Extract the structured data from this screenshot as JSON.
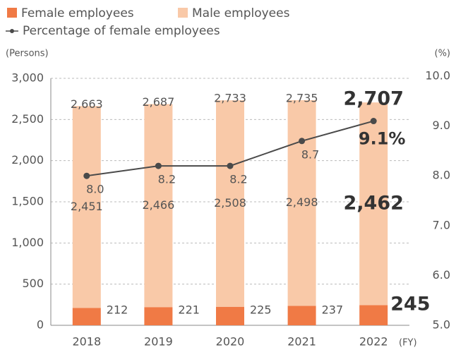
{
  "chart_data": {
    "type": "stacked_bar_line",
    "categories": [
      "2018",
      "2019",
      "2020",
      "2021",
      "2022"
    ],
    "x_unit": "(FY)",
    "y_label": "(Persons)",
    "y2_label": "(%)",
    "series": [
      {
        "name": "Female employees",
        "color": "#f07a45",
        "values": [
          212,
          221,
          225,
          237,
          245
        ]
      },
      {
        "name": "Male employees",
        "color": "#f9c9a8",
        "values": [
          2451,
          2466,
          2508,
          2498,
          2462
        ],
        "value_labels": [
          "2,451",
          "2,466",
          "2,508",
          "2,498",
          "2,462"
        ]
      },
      {
        "name": "Percentage of female employees",
        "color": "#4a4a4a",
        "axis": "y2",
        "values": [
          8.0,
          8.2,
          8.2,
          8.7,
          9.1
        ],
        "value_labels": [
          "8.0",
          "8.2",
          "8.2",
          "8.7",
          "9.1%"
        ]
      }
    ],
    "totals": [
      2663,
      2687,
      2733,
      2735,
      2707
    ],
    "total_labels": [
      "2,663",
      "2,687",
      "2,733",
      "2,735",
      "2,707"
    ],
    "ylim": [
      0,
      3000
    ],
    "yticks": [
      0,
      500,
      {
        "value": 1000,
        "label": "1,000"
      },
      {
        "value": 1500,
        "label": "1,500"
      },
      {
        "value": 2000,
        "label": "2,000"
      },
      {
        "value": 2500,
        "label": "2,500"
      },
      {
        "value": 3000,
        "label": "3,000"
      }
    ],
    "y2lim": [
      5,
      10
    ],
    "y2ticks": [
      {
        "value": 5,
        "label": "5.0"
      },
      {
        "value": 6,
        "label": "6.0"
      },
      {
        "value": 7,
        "label": "7.0"
      },
      {
        "value": 8,
        "label": "8.0"
      },
      {
        "value": 9,
        "label": "9.0"
      },
      {
        "value": 10,
        "label": "10.0"
      }
    ],
    "grid": true
  }
}
